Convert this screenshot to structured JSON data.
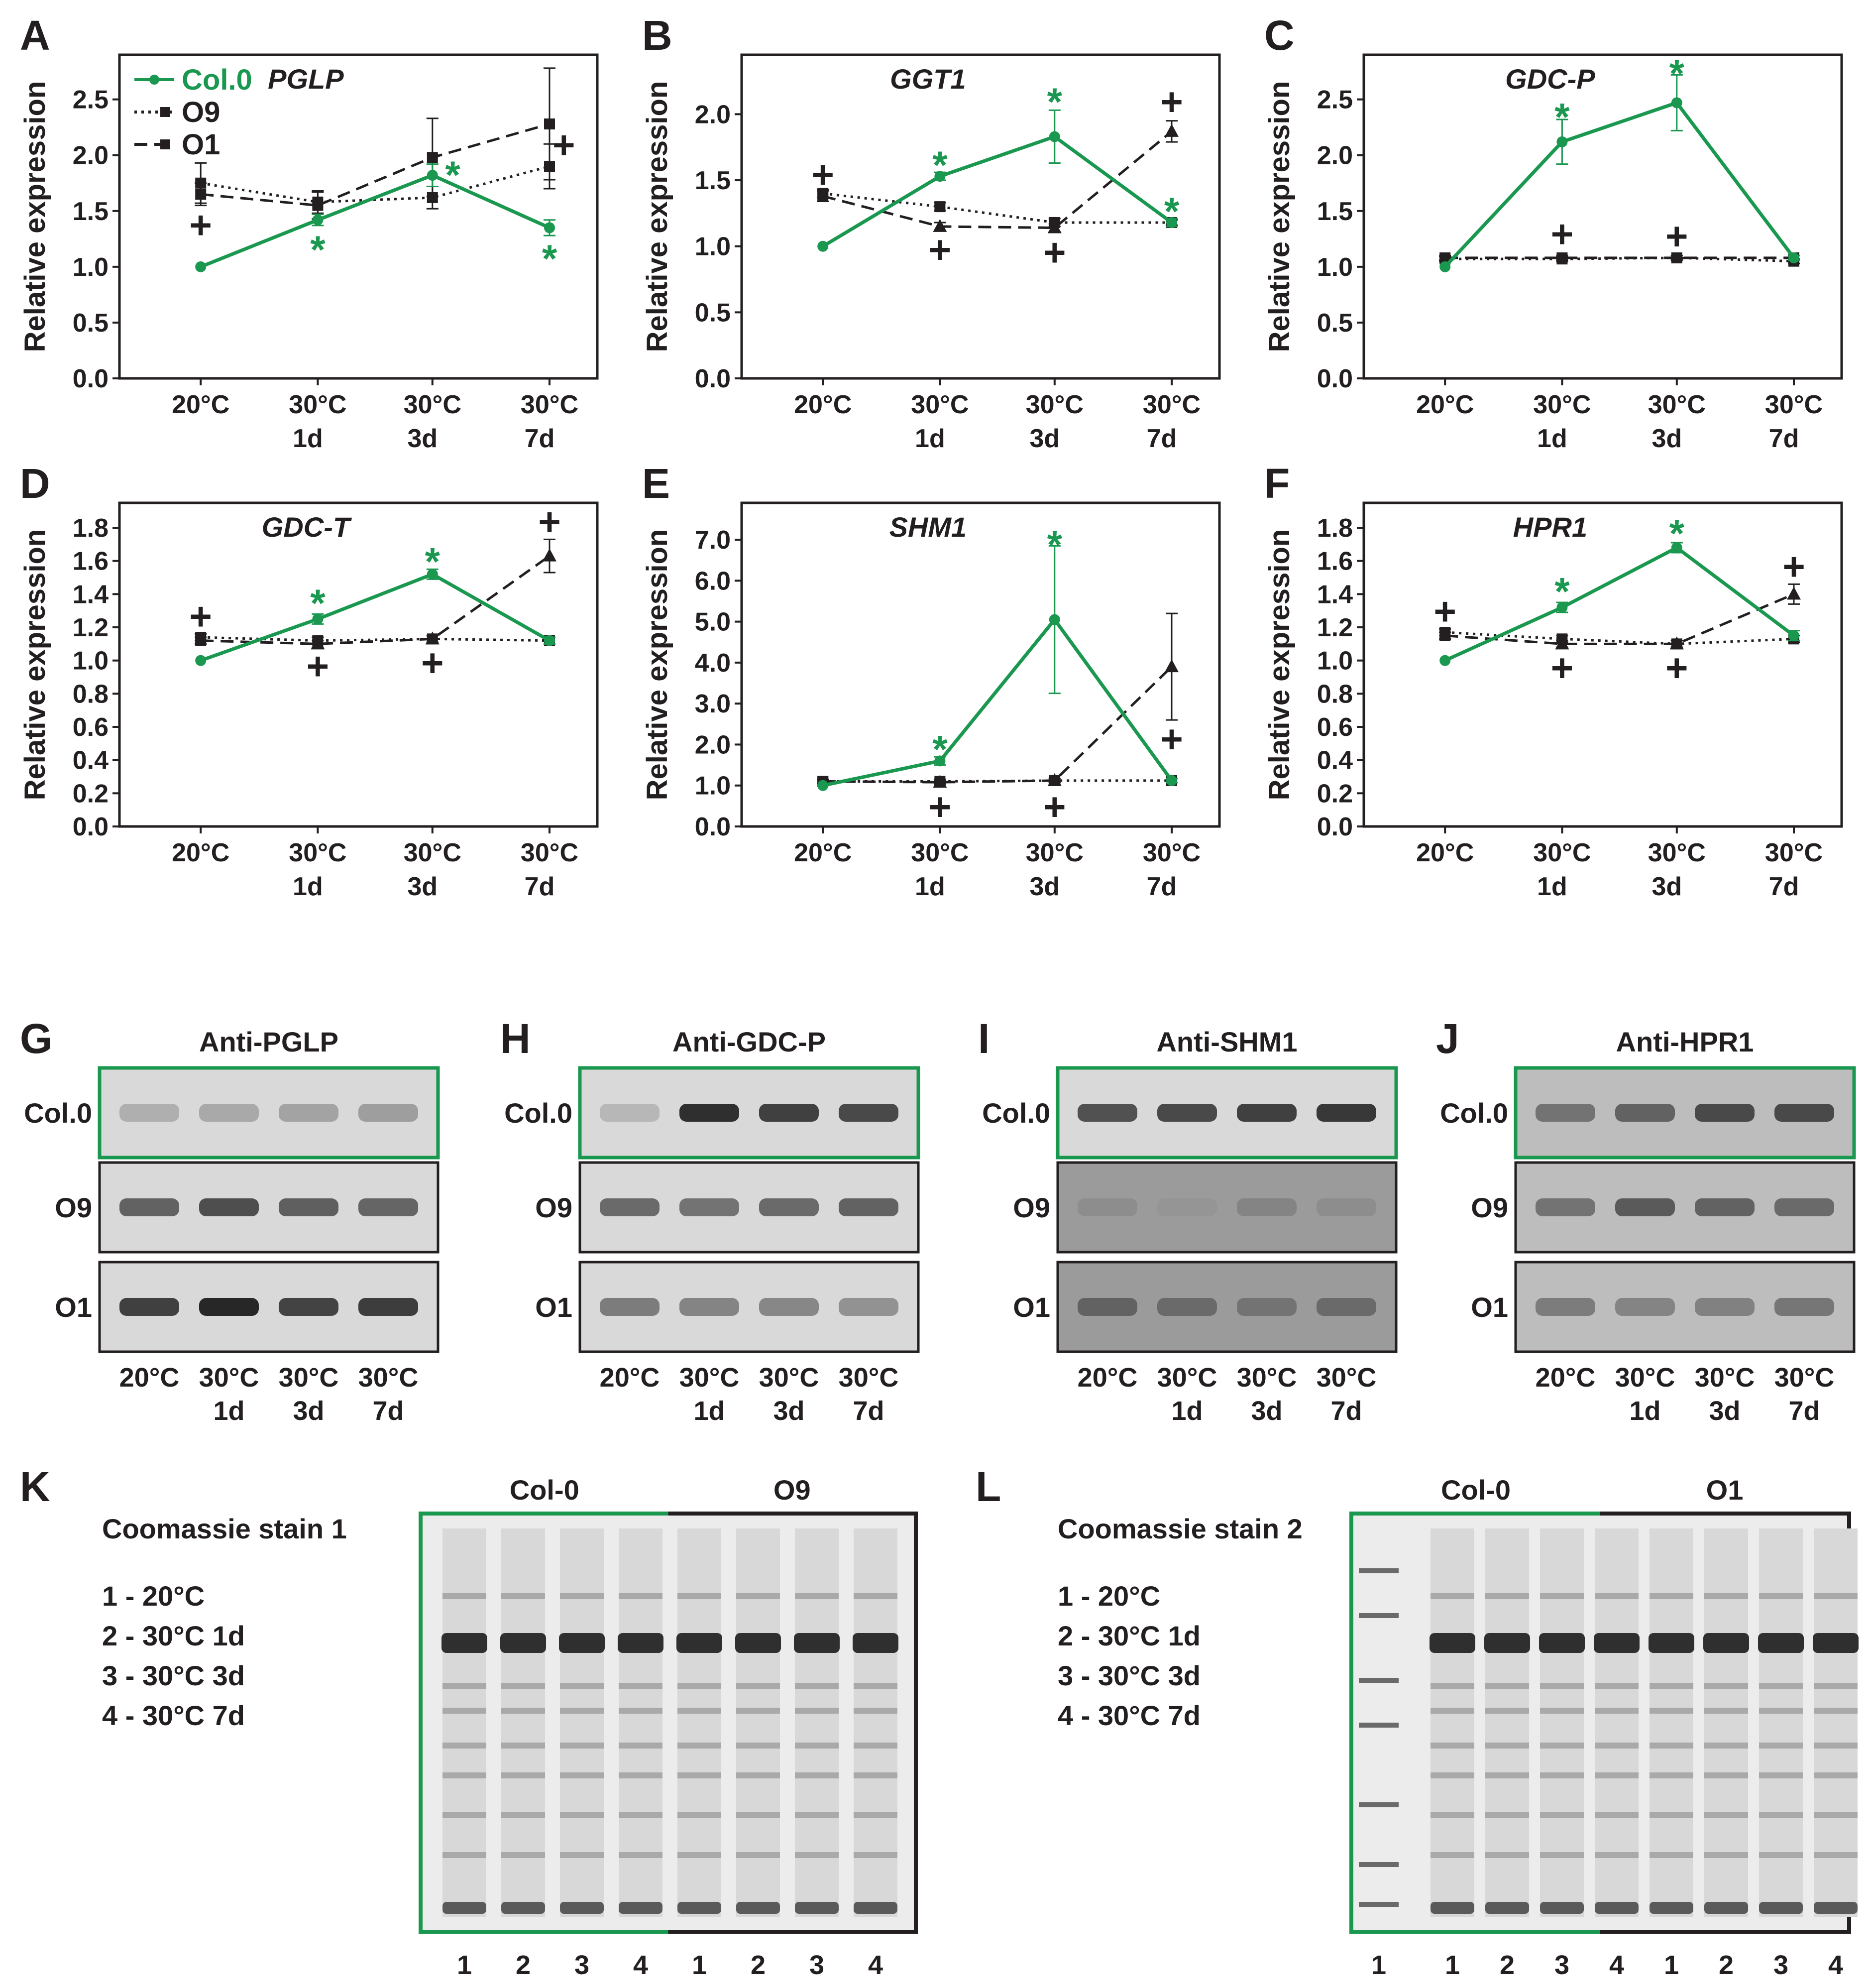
{
  "colors": {
    "col0": "#1a9850",
    "black": "#231f20",
    "blot_light": "#e6e6e6",
    "blot_dark": "#9a9a9a"
  },
  "legend": {
    "col0": "Col.0",
    "o9": "O9",
    "o1": "O1"
  },
  "x_tick_lines": [
    [
      "20°C",
      ""
    ],
    [
      "30°C",
      "1d"
    ],
    [
      "30°C",
      "3d"
    ],
    [
      "30°C",
      "7d"
    ]
  ],
  "y_axis_label": "Relative expression",
  "chart_data": [
    {
      "type": "line",
      "panel": "A",
      "gene": "PGLP",
      "ylim": [
        0,
        2.9
      ],
      "yticks": [
        0,
        0.5,
        1,
        1.5,
        2,
        2.5
      ],
      "tick_decimals": 1,
      "categories": [
        "20°C",
        "30°C 1d",
        "30°C 3d",
        "30°C 7d"
      ],
      "series": [
        {
          "name": "Col.0",
          "values": [
            1.0,
            1.42,
            1.82,
            1.35
          ],
          "errors": [
            0,
            0.05,
            0.1,
            0.07
          ]
        },
        {
          "name": "O9",
          "values": [
            1.75,
            1.58,
            1.62,
            1.9
          ],
          "errors": [
            0.18,
            0.1,
            0.1,
            0.2
          ]
        },
        {
          "name": "O1",
          "values": [
            1.65,
            1.55,
            1.98,
            2.28
          ],
          "errors": [
            0.1,
            0.12,
            0.35,
            0.5
          ]
        }
      ],
      "annotations": [
        {
          "sym": "+",
          "cat": 0,
          "val": 1.38,
          "c": "black"
        },
        {
          "sym": "*",
          "cat": 1,
          "val": 1.16,
          "c": "green"
        },
        {
          "sym": "*",
          "cat": 2,
          "val": 1.83,
          "c": "green",
          "dx": 0.17
        },
        {
          "sym": "*",
          "cat": 3,
          "val": 1.08,
          "c": "green"
        },
        {
          "sym": "+",
          "cat": 3,
          "val": 2.1,
          "c": "black",
          "dx": 0.12
        }
      ]
    },
    {
      "type": "line",
      "panel": "B",
      "gene": "GGT1",
      "ylim": [
        0,
        2.45
      ],
      "yticks": [
        0,
        0.5,
        1,
        1.5,
        2
      ],
      "tick_decimals": 1,
      "categories": [
        "20°C",
        "30°C 1d",
        "30°C 3d",
        "30°C 7d"
      ],
      "series": [
        {
          "name": "Col.0",
          "values": [
            1.0,
            1.53,
            1.83,
            1.18
          ],
          "errors": [
            0,
            0.03,
            0.2,
            0.03
          ]
        },
        {
          "name": "O9",
          "values": [
            1.4,
            1.3,
            1.18,
            1.18
          ],
          "errors": [
            0.03,
            0.03,
            0.03,
            0.02
          ]
        },
        {
          "name": "O1",
          "values": [
            1.38,
            1.15,
            1.14,
            1.87
          ],
          "errors": [
            0.04,
            0.03,
            0.03,
            0.08
          ]
        }
      ],
      "annotations": [
        {
          "sym": "+",
          "cat": 0,
          "val": 1.55,
          "c": "black"
        },
        {
          "sym": "*",
          "cat": 1,
          "val": 1.62,
          "c": "green"
        },
        {
          "sym": "+",
          "cat": 1,
          "val": 0.98,
          "c": "black"
        },
        {
          "sym": "*",
          "cat": 2,
          "val": 2.1,
          "c": "green"
        },
        {
          "sym": "+",
          "cat": 2,
          "val": 0.96,
          "c": "black"
        },
        {
          "sym": "+",
          "cat": 3,
          "val": 2.1,
          "c": "black"
        },
        {
          "sym": "*",
          "cat": 3,
          "val": 1.27,
          "c": "green"
        }
      ]
    },
    {
      "type": "line",
      "panel": "C",
      "gene": "GDC-P",
      "ylim": [
        0,
        2.9
      ],
      "yticks": [
        0,
        0.5,
        1,
        1.5,
        2,
        2.5
      ],
      "tick_decimals": 1,
      "categories": [
        "20°C",
        "30°C 1d",
        "30°C 3d",
        "30°C 7d"
      ],
      "series": [
        {
          "name": "Col.0",
          "values": [
            1.0,
            2.12,
            2.47,
            1.08
          ],
          "errors": [
            0,
            0.2,
            0.25,
            0.02
          ]
        },
        {
          "name": "O9",
          "values": [
            1.07,
            1.07,
            1.08,
            1.05
          ],
          "errors": [
            0.02,
            0.02,
            0.02,
            0.02
          ]
        },
        {
          "name": "O1",
          "values": [
            1.08,
            1.08,
            1.08,
            1.08
          ],
          "errors": [
            0.02,
            0.02,
            0.02,
            0.02
          ]
        }
      ],
      "annotations": [
        {
          "sym": "*",
          "cat": 1,
          "val": 2.35,
          "c": "green"
        },
        {
          "sym": "+",
          "cat": 1,
          "val": 1.3,
          "c": "black"
        },
        {
          "sym": "*",
          "cat": 2,
          "val": 2.74,
          "c": "green"
        },
        {
          "sym": "+",
          "cat": 2,
          "val": 1.28,
          "c": "black"
        }
      ]
    },
    {
      "type": "line",
      "panel": "D",
      "gene": "GDC-T",
      "ylim": [
        0,
        1.95
      ],
      "yticks": [
        0,
        0.2,
        0.4,
        0.6,
        0.8,
        1,
        1.2,
        1.4,
        1.6,
        1.8
      ],
      "tick_decimals": 1,
      "categories": [
        "20°C",
        "30°C 1d",
        "30°C 3d",
        "30°C 7d"
      ],
      "series": [
        {
          "name": "Col.0",
          "values": [
            1.0,
            1.25,
            1.52,
            1.12
          ],
          "errors": [
            0,
            0.03,
            0.03,
            0.02
          ]
        },
        {
          "name": "O9",
          "values": [
            1.14,
            1.12,
            1.13,
            1.12
          ],
          "errors": [
            0.02,
            0.02,
            0.02,
            0.02
          ]
        },
        {
          "name": "O1",
          "values": [
            1.12,
            1.1,
            1.13,
            1.63
          ],
          "errors": [
            0.02,
            0.02,
            0.02,
            0.1
          ]
        }
      ],
      "annotations": [
        {
          "sym": "+",
          "cat": 0,
          "val": 1.27,
          "c": "black"
        },
        {
          "sym": "*",
          "cat": 1,
          "val": 1.35,
          "c": "green"
        },
        {
          "sym": "+",
          "cat": 1,
          "val": 0.97,
          "c": "black"
        },
        {
          "sym": "*",
          "cat": 2,
          "val": 1.6,
          "c": "green"
        },
        {
          "sym": "+",
          "cat": 2,
          "val": 0.99,
          "c": "black"
        },
        {
          "sym": "+",
          "cat": 3,
          "val": 1.84,
          "c": "black"
        }
      ]
    },
    {
      "type": "line",
      "panel": "E",
      "gene": "SHM1",
      "ylim": [
        0,
        7.9
      ],
      "yticks": [
        0,
        1,
        2,
        3,
        4,
        5,
        6,
        7
      ],
      "tick_decimals": 1,
      "categories": [
        "20°C",
        "30°C 1d",
        "30°C 3d",
        "30°C 7d"
      ],
      "series": [
        {
          "name": "Col.0",
          "values": [
            1.0,
            1.6,
            5.05,
            1.12
          ],
          "errors": [
            0,
            0.1,
            1.8,
            0.05
          ]
        },
        {
          "name": "O9",
          "values": [
            1.1,
            1.1,
            1.12,
            1.12
          ],
          "errors": [
            0.05,
            0.05,
            0.05,
            0.05
          ]
        },
        {
          "name": "O1",
          "values": [
            1.1,
            1.08,
            1.12,
            3.9
          ],
          "errors": [
            0.05,
            0.05,
            0.05,
            1.3
          ]
        }
      ],
      "annotations": [
        {
          "sym": "*",
          "cat": 1,
          "val": 1.9,
          "c": "green"
        },
        {
          "sym": "+",
          "cat": 1,
          "val": 0.5,
          "c": "black"
        },
        {
          "sym": "*",
          "cat": 2,
          "val": 6.9,
          "c": "green"
        },
        {
          "sym": "+",
          "cat": 2,
          "val": 0.5,
          "c": "black"
        },
        {
          "sym": "+",
          "cat": 3,
          "val": 2.15,
          "c": "black"
        }
      ]
    },
    {
      "type": "line",
      "panel": "F",
      "gene": "HPR1",
      "ylim": [
        0,
        1.95
      ],
      "yticks": [
        0,
        0.2,
        0.4,
        0.6,
        0.8,
        1,
        1.2,
        1.4,
        1.6,
        1.8
      ],
      "tick_decimals": 1,
      "categories": [
        "20°C",
        "30°C 1d",
        "30°C 3d",
        "30°C 7d"
      ],
      "series": [
        {
          "name": "Col.0",
          "values": [
            1.0,
            1.32,
            1.68,
            1.15
          ],
          "errors": [
            0,
            0.03,
            0.03,
            0.03
          ]
        },
        {
          "name": "O9",
          "values": [
            1.17,
            1.13,
            1.1,
            1.13
          ],
          "errors": [
            0.02,
            0.02,
            0.02,
            0.02
          ]
        },
        {
          "name": "O1",
          "values": [
            1.15,
            1.1,
            1.1,
            1.4
          ],
          "errors": [
            0.02,
            0.02,
            0.02,
            0.06
          ]
        }
      ],
      "annotations": [
        {
          "sym": "+",
          "cat": 0,
          "val": 1.3,
          "c": "black"
        },
        {
          "sym": "*",
          "cat": 1,
          "val": 1.42,
          "c": "green"
        },
        {
          "sym": "+",
          "cat": 1,
          "val": 0.96,
          "c": "black"
        },
        {
          "sym": "*",
          "cat": 2,
          "val": 1.77,
          "c": "green"
        },
        {
          "sym": "+",
          "cat": 2,
          "val": 0.96,
          "c": "black"
        },
        {
          "sym": "+",
          "cat": 3,
          "val": 1.57,
          "c": "black"
        }
      ]
    }
  ],
  "western": {
    "row_labels": [
      "Col.0",
      "O9",
      "O1"
    ],
    "lane_label_lines": [
      [
        "20°C",
        ""
      ],
      [
        "30°C",
        "1d"
      ],
      [
        "30°C",
        "3d"
      ],
      [
        "30°C",
        "7d"
      ]
    ],
    "panels": [
      {
        "letter": "G",
        "title": "Anti-PGLP",
        "intensity": [
          [
            0.15,
            0.18,
            0.22,
            0.25
          ],
          [
            0.6,
            0.72,
            0.62,
            0.58
          ],
          [
            0.8,
            0.95,
            0.78,
            0.82
          ]
        ]
      },
      {
        "letter": "H",
        "title": "Anti-GDC-P",
        "intensity": [
          [
            0.1,
            0.9,
            0.8,
            0.75
          ],
          [
            0.55,
            0.5,
            0.55,
            0.6
          ],
          [
            0.45,
            0.4,
            0.38,
            0.32
          ]
        ]
      },
      {
        "letter": "I",
        "title": "Anti-SHM1",
        "intensity": [
          [
            0.7,
            0.75,
            0.8,
            0.85
          ],
          [
            0.35,
            0.3,
            0.4,
            0.35
          ],
          [
            0.6,
            0.55,
            0.5,
            0.55
          ]
        ]
      },
      {
        "letter": "J",
        "title": "Anti-HPR1",
        "intensity": [
          [
            0.5,
            0.6,
            0.75,
            0.75
          ],
          [
            0.5,
            0.65,
            0.6,
            0.55
          ],
          [
            0.45,
            0.4,
            0.42,
            0.48
          ]
        ]
      }
    ]
  },
  "coomassie": [
    {
      "letter": "K",
      "title": "Coomassie stain 1",
      "group_left": "Col-0",
      "group_right": "O9",
      "lanes": [
        "1",
        "2",
        "3",
        "4",
        "1",
        "2",
        "3",
        "4"
      ],
      "legend": [
        "1 - 20°C",
        "2 - 30°C 1d",
        "3 - 30°C 3d",
        "4 - 30°C 7d"
      ]
    },
    {
      "letter": "L",
      "title": "Coomassie stain 2",
      "group_left": "Col-0",
      "group_right": "O1",
      "lanes": [
        "1",
        "2",
        "3",
        "4",
        "1",
        "2",
        "3",
        "4"
      ],
      "marker_lane": "1",
      "legend": [
        "1 - 20°C",
        "2 - 30°C 1d",
        "3 - 30°C 3d",
        "4 - 30°C 7d"
      ]
    }
  ]
}
